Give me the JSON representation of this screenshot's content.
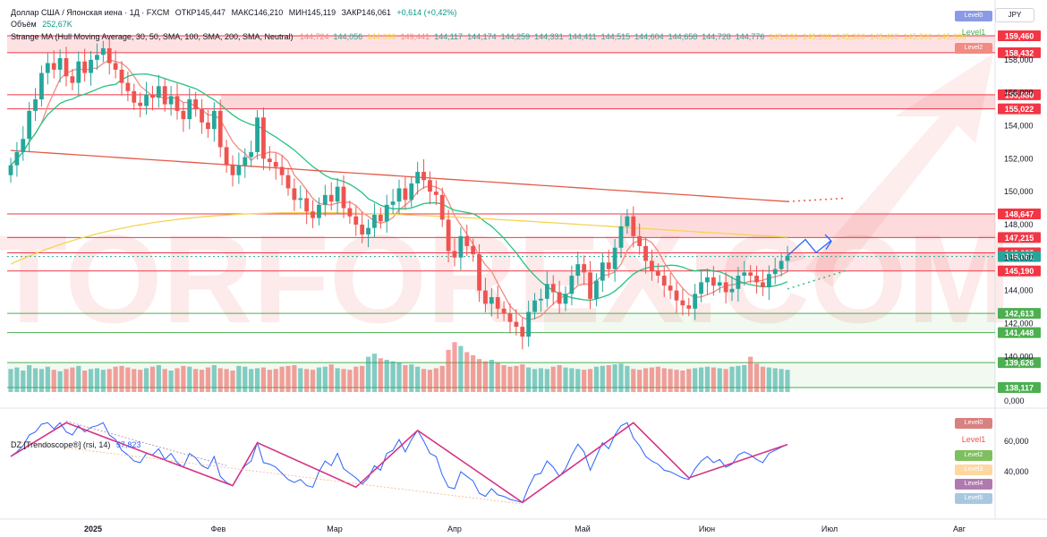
{
  "header": {
    "instrument": "Доллар США / Японская иена · 1Д · FXCM",
    "open": "ОТКР145,447",
    "high": "МАКС146,210",
    "low": "МИН145,119",
    "close": "ЗАКР146,061",
    "change": "+0,614 (+0,42%)",
    "volume_label": "Объём",
    "volume_value": "252,67K",
    "ma_label": "Strange MA (Hull Moving Average, 30, 50, SMA, 100, SMA, 200, SMA, Neutral)",
    "ma_values": [
      "144,724",
      "144,056",
      "144,000",
      "149,441",
      "144,117",
      "144,174",
      "144,259",
      "144,331",
      "144,411",
      "144,515",
      "144,604",
      "144,658",
      "144,728",
      "144,776",
      "145,100",
      "145,200",
      "145,300",
      "145,400",
      "145,500",
      "145,600"
    ]
  },
  "currency": "JPY",
  "main_legend": [
    "Level0",
    "Level1",
    "Level2"
  ],
  "rsi": {
    "label": "DZ [Trendoscope®] (rsi, 14)",
    "value": "57,823",
    "legend": [
      "Level0",
      "Level1",
      "Level2",
      "Level3",
      "Level4",
      "Level5"
    ],
    "ticks": [
      "60,000",
      "40,000"
    ]
  },
  "colors": {
    "up": "#26a69a",
    "down": "#ef5350",
    "resistance": "#f23645",
    "support": "#4caf50",
    "watermark": "#ef5350"
  },
  "watermark": "TORFOREX.COM",
  "chart_data": {
    "type": "candlestick",
    "symbol": "USDJPY",
    "timeframe": "1D",
    "x_labels": [
      "2025",
      "Фев",
      "Мар",
      "Апр",
      "Май",
      "Июн",
      "Июл",
      "Авг"
    ],
    "y_ticks": [
      158000,
      156000,
      154000,
      152000,
      150000,
      148000,
      146000,
      144000,
      142000,
      140000,
      0
    ],
    "y_tick_labels": [
      "158,000",
      "156,000",
      "154,000",
      "152,000",
      "150,000",
      "148,000",
      "146,000",
      "144,000",
      "142,000",
      "140,000",
      "0,000"
    ],
    "price_levels": [
      {
        "value": 159.46,
        "label": "159,460",
        "kind": "resistance"
      },
      {
        "value": 158.432,
        "label": "158,432",
        "kind": "resistance"
      },
      {
        "value": 155.88,
        "label": "155,880",
        "kind": "resistance"
      },
      {
        "value": 155.022,
        "label": "155,022",
        "kind": "resistance"
      },
      {
        "value": 148.647,
        "label": "148,647",
        "kind": "resistance"
      },
      {
        "value": 147.215,
        "label": "147,215",
        "kind": "resistance"
      },
      {
        "value": 146.285,
        "label": "146,285",
        "kind": "resistance"
      },
      {
        "value": 146.061,
        "label": "146,061",
        "kind": "current"
      },
      {
        "value": 145.19,
        "label": "145,190",
        "kind": "resistance"
      },
      {
        "value": 142.613,
        "label": "142,613",
        "kind": "support"
      },
      {
        "value": 141.448,
        "label": "141,448",
        "kind": "support"
      },
      {
        "value": 139.626,
        "label": "139,626",
        "kind": "support"
      },
      {
        "value": 138.117,
        "label": "138,117",
        "kind": "support"
      }
    ],
    "close_series": [
      151.6,
      152.4,
      153.2,
      154.9,
      155.6,
      157.2,
      157.8,
      157.4,
      158.1,
      157.0,
      156.6,
      157.9,
      157.2,
      158.0,
      158.3,
      158.7,
      157.8,
      157.4,
      156.6,
      156.1,
      155.4,
      155.2,
      155.9,
      155.7,
      156.4,
      155.3,
      155.8,
      154.9,
      154.4,
      155.6,
      155.0,
      154.2,
      153.8,
      154.9,
      152.7,
      151.6,
      151.0,
      151.6,
      152.1,
      152.4,
      154.5,
      152.0,
      151.8,
      151.5,
      151.0,
      150.2,
      149.5,
      149.6,
      148.8,
      148.4,
      149.2,
      149.8,
      149.4,
      150.3,
      149.0,
      148.5,
      148.0,
      147.4,
      147.8,
      148.6,
      148.2,
      149.2,
      149.4,
      150.2,
      149.5,
      150.5,
      151.2,
      150.7,
      150.0,
      149.8,
      148.3,
      146.4,
      146.0,
      147.3,
      146.7,
      146.2,
      144.0,
      143.2,
      143.6,
      142.9,
      142.6,
      142.1,
      141.8,
      141.2,
      142.7,
      143.4,
      143.5,
      144.4,
      143.9,
      143.2,
      143.8,
      144.9,
      145.6,
      145.1,
      143.5,
      144.6,
      145.7,
      145.3,
      146.6,
      147.9,
      148.5,
      147.3,
      146.7,
      145.8,
      145.2,
      144.9,
      144.3,
      144.0,
      143.4,
      143.1,
      142.9,
      143.8,
      144.5,
      144.8,
      144.3,
      144.5,
      143.9,
      144.1,
      144.9,
      145.1,
      144.9,
      144.5,
      144.2,
      145.0,
      145.3,
      145.8,
      146.1
    ],
    "volume_series": [
      30,
      32,
      28,
      35,
      31,
      30,
      33,
      29,
      27,
      30,
      32,
      34,
      28,
      30,
      31,
      29,
      30,
      33,
      34,
      32,
      30,
      29,
      31,
      33,
      35,
      30,
      28,
      31,
      34,
      33,
      30,
      29,
      32,
      35,
      31,
      30,
      28,
      34,
      33,
      30,
      31,
      32,
      29,
      30,
      33,
      34,
      35,
      31,
      30,
      29,
      32,
      33,
      36,
      31,
      30,
      29,
      33,
      34,
      46,
      50,
      44,
      42,
      40,
      38,
      35,
      36,
      33,
      30,
      29,
      31,
      34,
      55,
      65,
      60,
      52,
      48,
      43,
      40,
      42,
      38,
      35,
      33,
      34,
      36,
      32,
      30,
      31,
      30,
      33,
      35,
      32,
      31,
      30,
      29,
      30,
      33,
      34,
      35,
      36,
      37,
      34,
      30,
      29,
      31,
      32,
      33,
      31,
      30,
      29,
      28,
      30,
      31,
      32,
      33,
      32,
      31,
      30,
      33,
      34,
      35,
      46,
      37,
      33,
      32,
      31,
      30,
      29
    ],
    "rsi_series": [
      50,
      53,
      57,
      64,
      66,
      71,
      72,
      68,
      72,
      66,
      64,
      70,
      66,
      69,
      70,
      72,
      64,
      61,
      54,
      51,
      47,
      46,
      52,
      51,
      55,
      48,
      52,
      46,
      43,
      52,
      49,
      44,
      42,
      50,
      37,
      33,
      31,
      38,
      44,
      47,
      59,
      46,
      45,
      43,
      39,
      35,
      33,
      35,
      31,
      30,
      40,
      47,
      44,
      52,
      42,
      39,
      36,
      32,
      36,
      44,
      41,
      52,
      54,
      61,
      53,
      61,
      67,
      60,
      52,
      50,
      38,
      30,
      29,
      40,
      37,
      34,
      26,
      24,
      29,
      25,
      24,
      22,
      21,
      20,
      30,
      38,
      39,
      47,
      43,
      37,
      42,
      51,
      58,
      53,
      41,
      50,
      59,
      55,
      64,
      70,
      72,
      62,
      57,
      50,
      47,
      45,
      41,
      40,
      38,
      36,
      35,
      42,
      47,
      50,
      46,
      48,
      43,
      45,
      51,
      53,
      51,
      48,
      46,
      52,
      54,
      56,
      57.8
    ],
    "ma_lines": [
      {
        "name": "MA30",
        "color": "#f28b82"
      },
      {
        "name": "MA50",
        "color": "#26c281"
      },
      {
        "name": "MA100",
        "color": "#f5d451"
      },
      {
        "name": "MA200",
        "color": "#e35b4a"
      }
    ]
  }
}
